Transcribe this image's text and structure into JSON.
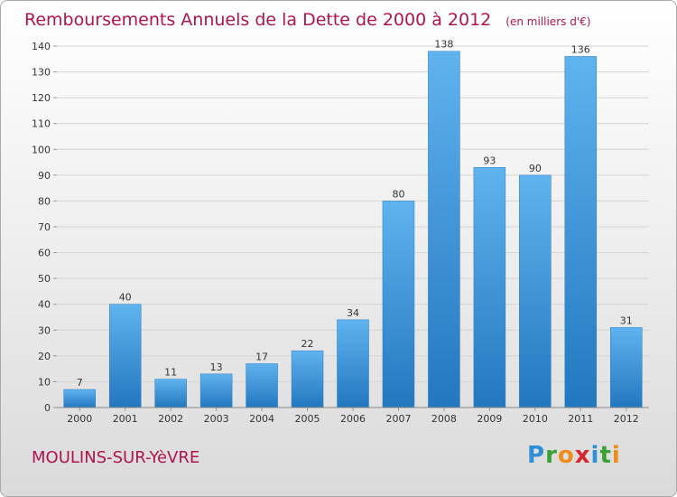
{
  "header": {
    "title": "Remboursements Annuels de la Dette de 2000 à 2012",
    "subtitle": "(en milliers d'€)"
  },
  "footer": {
    "city": "MOULINS-SUR-YèVRE",
    "logo_text": "Proxiti",
    "logo_colors": [
      "#2e8fd6",
      "#3aa235",
      "#f08c1a",
      "#d3282e",
      "#2e8fd6",
      "#3aa235",
      "#f08c1a"
    ]
  },
  "chart_data": {
    "type": "bar",
    "categories": [
      "2000",
      "2001",
      "2002",
      "2003",
      "2004",
      "2005",
      "2006",
      "2007",
      "2008",
      "2009",
      "2010",
      "2011",
      "2012"
    ],
    "values": [
      7,
      40,
      11,
      13,
      17,
      22,
      34,
      80,
      138,
      93,
      90,
      136,
      31
    ],
    "ylim": [
      0,
      140
    ],
    "yticks": [
      0,
      10,
      20,
      30,
      40,
      50,
      60,
      70,
      80,
      90,
      100,
      110,
      120,
      130,
      140
    ],
    "grid": true,
    "bar_color": "#3d97d8"
  }
}
